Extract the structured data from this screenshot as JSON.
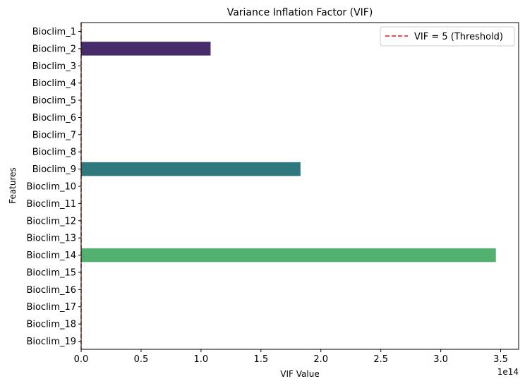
{
  "chart_data": {
    "type": "bar",
    "orientation": "horizontal",
    "title": "Variance Inflation Factor (VIF)",
    "xlabel": "VIF Value",
    "ylabel": "Features",
    "x_offset_label": "1e14",
    "x_scale_factor": 100000000000000.0,
    "xlim": [
      0,
      3.65
    ],
    "xticks": [
      0.0,
      0.5,
      1.0,
      1.5,
      2.0,
      2.5,
      3.0,
      3.5
    ],
    "xtick_labels": [
      "0.0",
      "0.5",
      "1.0",
      "1.5",
      "2.0",
      "2.5",
      "3.0",
      "3.5"
    ],
    "categories": [
      "Bioclim_1",
      "Bioclim_2",
      "Bioclim_3",
      "Bioclim_4",
      "Bioclim_5",
      "Bioclim_6",
      "Bioclim_7",
      "Bioclim_8",
      "Bioclim_9",
      "Bioclim_10",
      "Bioclim_11",
      "Bioclim_12",
      "Bioclim_13",
      "Bioclim_14",
      "Bioclim_15",
      "Bioclim_16",
      "Bioclim_17",
      "Bioclim_18",
      "Bioclim_19"
    ],
    "values": [
      0,
      1.08,
      0,
      0,
      0,
      0,
      0,
      0,
      1.83,
      0,
      0,
      0,
      0,
      3.46,
      0,
      0,
      0,
      0,
      0
    ],
    "bar_colors": [
      "#440154",
      "#482576",
      "#3e4a89",
      "#31688e",
      "#26828e",
      "#1f9e89",
      "#35b779",
      "#6ece58",
      "#2e797f",
      "#b5de2b",
      "#fde725",
      "#440154",
      "#482576",
      "#52b070",
      "#31688e",
      "#26828e",
      "#1f9e89",
      "#35b779",
      "#6ece58"
    ],
    "colors_for_visible": {
      "Bioclim_2": "#472c6b",
      "Bioclim_9": "#2e787e",
      "Bioclim_14": "#52b070"
    },
    "threshold": {
      "value": 5,
      "color": "#e41a1c",
      "style": "dashed"
    },
    "legend": {
      "position": "top-right",
      "entries": [
        "VIF = 5 (Threshold)"
      ]
    },
    "grid": false
  }
}
